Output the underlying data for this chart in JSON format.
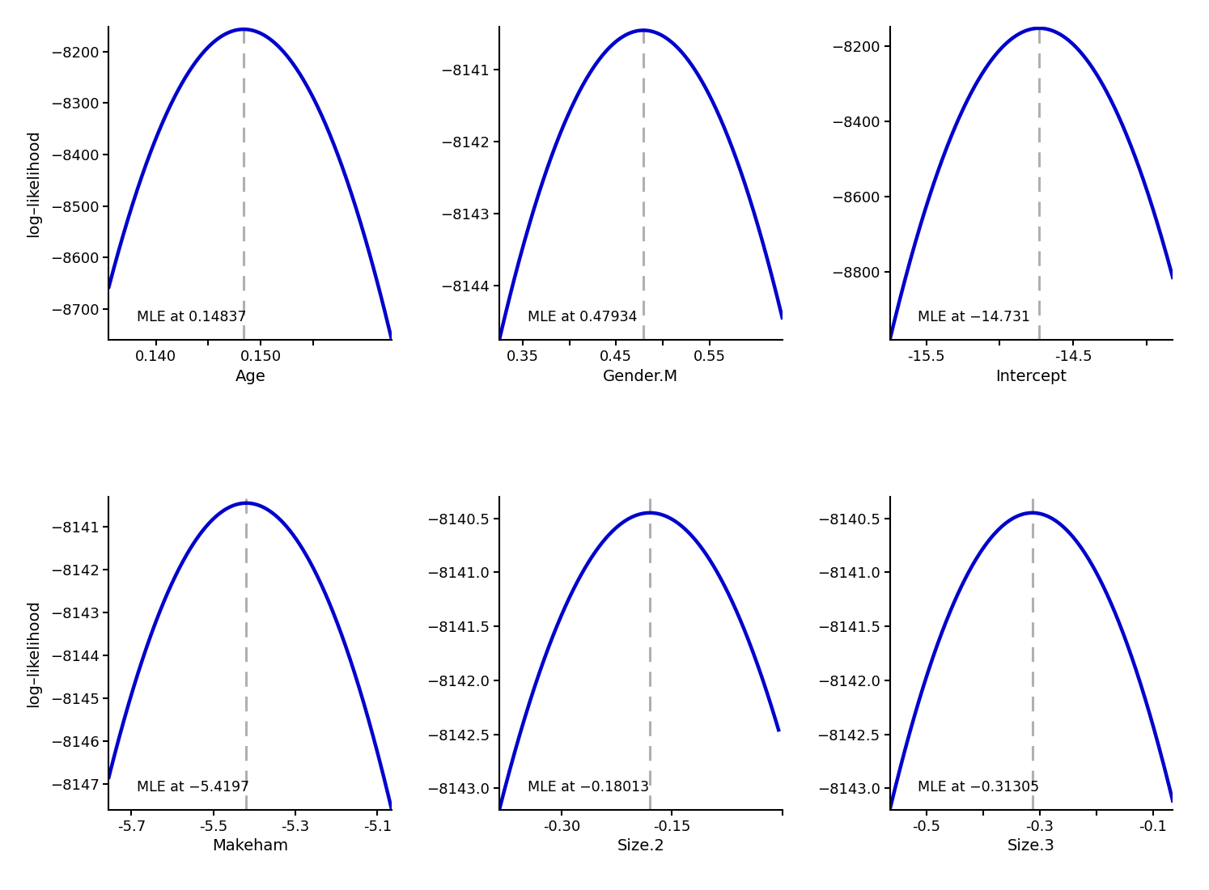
{
  "panels": [
    {
      "param": "Age",
      "mle": 0.14837,
      "x_min": 0.1355,
      "x_max": 0.1625,
      "y_min": -8760,
      "y_max": -8152,
      "y_ticks": [
        -8200,
        -8300,
        -8400,
        -8500,
        -8600,
        -8700
      ],
      "x_ticks": [
        0.14,
        0.145,
        0.15,
        0.155
      ],
      "x_tick_labels": [
        "0.140",
        "",
        "0.150",
        ""
      ],
      "max_ll": -8157,
      "annotation": "MLE at 0.14837"
    },
    {
      "param": "Gender.M",
      "mle": 0.47934,
      "x_min": 0.325,
      "x_max": 0.628,
      "y_min": -8144.75,
      "y_max": -8140.4,
      "y_ticks": [
        -8141,
        -8142,
        -8143,
        -8144
      ],
      "x_ticks": [
        0.35,
        0.4,
        0.45,
        0.5,
        0.55
      ],
      "x_tick_labels": [
        "0.35",
        "",
        "0.45",
        "",
        "0.55"
      ],
      "max_ll": -8140.45,
      "annotation": "MLE at 0.47934"
    },
    {
      "param": "Intercept",
      "mle": -14.731,
      "x_min": -15.75,
      "x_max": -13.82,
      "y_min": -8980,
      "y_max": -8148,
      "y_ticks": [
        -8200,
        -8400,
        -8600,
        -8800
      ],
      "x_ticks": [
        -15.5,
        -15.0,
        -14.5,
        -14.0
      ],
      "x_tick_labels": [
        "-15.5",
        "",
        "-14.5",
        ""
      ],
      "max_ll": -8152,
      "annotation": "MLE at −14.731"
    },
    {
      "param": "Makeham",
      "mle": -5.4197,
      "x_min": -5.755,
      "x_max": -5.065,
      "y_min": -8147.6,
      "y_max": -8140.3,
      "y_ticks": [
        -8141,
        -8142,
        -8143,
        -8144,
        -8145,
        -8146,
        -8147
      ],
      "x_ticks": [
        -5.7,
        -5.5,
        -5.3,
        -5.1
      ],
      "x_tick_labels": [
        "-5.7",
        "-5.5",
        "-5.3",
        "-5.1"
      ],
      "max_ll": -8140.45,
      "annotation": "MLE at −5.4197"
    },
    {
      "param": "Size.2",
      "mle": -0.18013,
      "x_min": -0.385,
      "x_max": -0.005,
      "y_min": -8143.2,
      "y_max": -8140.3,
      "y_ticks": [
        -8140.5,
        -8141.0,
        -8141.5,
        -8142.0,
        -8142.5,
        -8143.0
      ],
      "x_ticks": [
        -0.3,
        -0.15,
        0.0
      ],
      "x_tick_labels": [
        "-0.30",
        "-0.15",
        ""
      ],
      "max_ll": -8140.45,
      "annotation": "MLE at −0.18013"
    },
    {
      "param": "Size.3",
      "mle": -0.31305,
      "x_min": -0.565,
      "x_max": -0.065,
      "y_min": -8143.2,
      "y_max": -8140.3,
      "y_ticks": [
        -8140.5,
        -8141.0,
        -8141.5,
        -8142.0,
        -8142.5,
        -8143.0
      ],
      "x_ticks": [
        -0.5,
        -0.4,
        -0.3,
        -0.2,
        -0.1
      ],
      "x_tick_labels": [
        "-0.5",
        "",
        "-0.3",
        "",
        "-0.1"
      ],
      "max_ll": -8140.45,
      "annotation": "MLE at −0.31305"
    }
  ],
  "line_color": "#0000cc",
  "dash_color": "#b0b0b0",
  "ylabel": "log–likelihood",
  "bg_color": "#ffffff",
  "line_width": 3.2,
  "font_size": 13,
  "label_font_size": 14,
  "annot_font_size": 12.5
}
